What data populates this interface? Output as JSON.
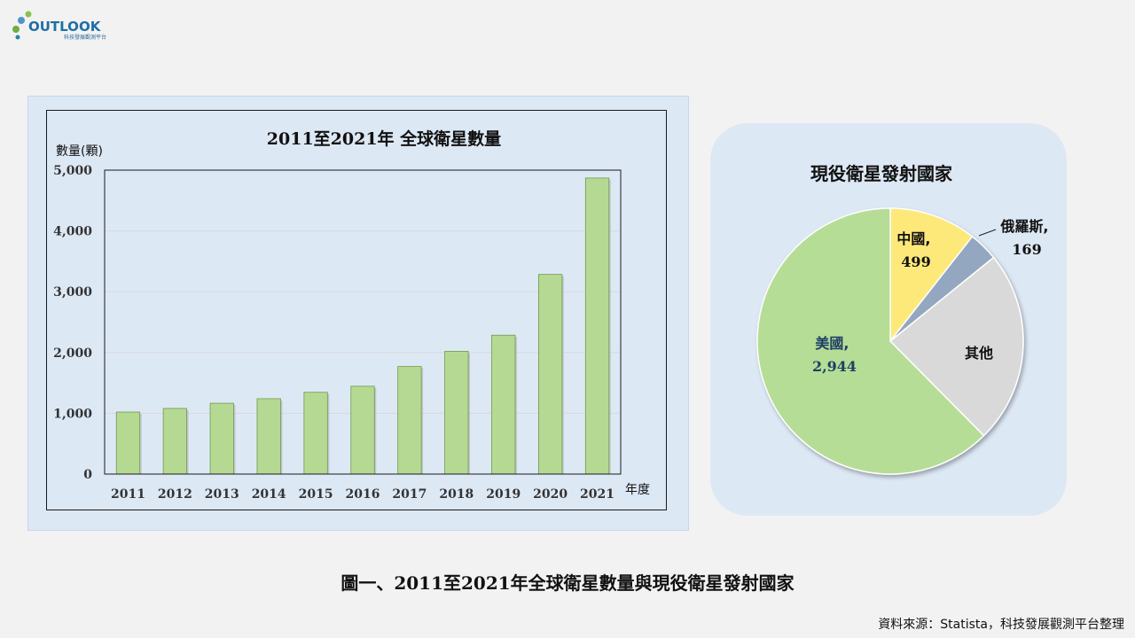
{
  "logo": {
    "text": "OUTLOOK",
    "subtext": "科技發展觀測平台"
  },
  "chart_data": [
    {
      "type": "bar",
      "title": "2011至2021年 全球衛星數量",
      "ylabel": "數量(顆)",
      "xlabel": "年度",
      "categories": [
        "2011",
        "2012",
        "2013",
        "2014",
        "2015",
        "2016",
        "2017",
        "2018",
        "2019",
        "2020",
        "2021"
      ],
      "values": [
        1020,
        1080,
        1165,
        1240,
        1345,
        1445,
        1770,
        2020,
        2285,
        3285,
        4870
      ],
      "ylim": [
        0,
        5000
      ],
      "yticks": [
        0,
        1000,
        2000,
        3000,
        4000,
        5000
      ],
      "ytick_labels": [
        "0",
        "1,000",
        "2,000",
        "3,000",
        "4,000",
        "5,000"
      ],
      "grid": true,
      "bar_color": "#b5d993"
    },
    {
      "type": "pie",
      "title": "現役衛星發射國家",
      "slices": [
        {
          "name": "中國",
          "value": 499,
          "value_label": "499",
          "color": "#fde97a"
        },
        {
          "name": "俄羅斯",
          "value": 169,
          "value_label": "169",
          "color": "#94a7c1"
        },
        {
          "name": "其他",
          "value": 1105,
          "value_label": "",
          "color": "#d9d9d9"
        },
        {
          "name": "美國",
          "value": 2944,
          "value_label": "2,944",
          "color": "#b5dd96"
        }
      ]
    }
  ],
  "caption": "圖一、2011至2021年全球衛星數量與現役衛星發射國家",
  "source": "資料來源：Statista，科技發展觀測平台整理"
}
